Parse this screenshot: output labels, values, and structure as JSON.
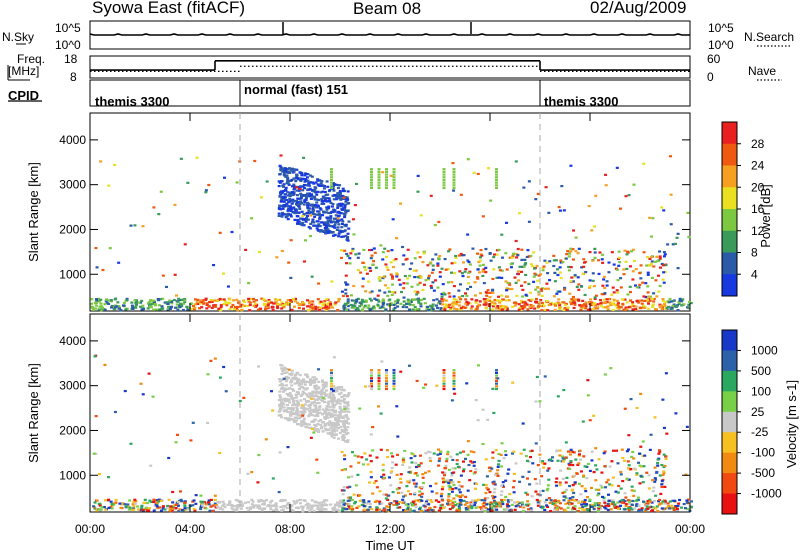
{
  "header": {
    "title": "Syowa East (fitACF)",
    "beam": "Beam 08",
    "date": "02/Aug/2009"
  },
  "noise_panel": {
    "left_label": "N.Sky",
    "right_label": "N.Search",
    "left_ticks": [
      "10^5",
      "10^0"
    ],
    "right_ticks": [
      "10^5",
      "10^0"
    ]
  },
  "freq_panel": {
    "left_label_1": "Freq.",
    "left_label_2": "[MHz]",
    "right_label": "Nave",
    "left_ticks": [
      "18",
      "8"
    ],
    "right_ticks": [
      "60",
      "0"
    ],
    "freq_segments": [
      {
        "start": 0,
        "end": 5,
        "value_mhz": 11.6
      },
      {
        "start": 5,
        "end": 18,
        "value_mhz": 15.8
      },
      {
        "start": 18,
        "end": 24,
        "value_mhz": 11.6
      }
    ],
    "nave_segments": [
      {
        "start": 0,
        "end": 6,
        "value": 18
      },
      {
        "start": 6,
        "end": 18,
        "value": 32
      },
      {
        "start": 18,
        "end": 24,
        "value": 18
      }
    ]
  },
  "cpid_panel": {
    "label": "CPID",
    "modes": [
      {
        "text": "themis 3300",
        "start": 0
      },
      {
        "text": "normal (fast) 151",
        "start": 6
      },
      {
        "text": "themis 3300",
        "start": 18
      }
    ]
  },
  "chart_data": [
    {
      "type": "heatmap",
      "parameter": "power",
      "ylabel": "Slant Range [km]",
      "ylim": [
        180,
        4600
      ],
      "yticks": [
        "4000",
        "3000",
        "2000",
        "1000"
      ],
      "colorbar_label": "Power [dB]",
      "colorbar_ticks": [
        "28",
        "24",
        "20",
        "16",
        "12",
        "8",
        "4"
      ],
      "colorbar_colors": [
        "#e82020",
        "#f05a10",
        "#f5a020",
        "#e8e020",
        "#7cc840",
        "#3a9a5a",
        "#2a5aa8",
        "#1838e0"
      ]
    },
    {
      "type": "heatmap",
      "parameter": "velocity",
      "ylabel": "Slant Range [km]",
      "xlabel": "Time UT",
      "ylim": [
        180,
        4600
      ],
      "yticks": [
        "4000",
        "3000",
        "2000",
        "1000"
      ],
      "xticks": [
        "00:00",
        "04:00",
        "08:00",
        "12:00",
        "16:00",
        "20:00",
        "00:00"
      ],
      "xlim_hours": [
        0,
        24
      ],
      "colorbar_label": "Velocity [m s-1]",
      "colorbar_ticks": [
        "1000",
        "500",
        "100",
        "25",
        "-25",
        "-100",
        "-500",
        "-1000"
      ],
      "colorbar_colors": [
        "#1838c8",
        "#2c62a8",
        "#2aa860",
        "#78d048",
        "#c8c8c8",
        "#f5c020",
        "#f08a10",
        "#f04a10",
        "#e81010"
      ]
    }
  ]
}
